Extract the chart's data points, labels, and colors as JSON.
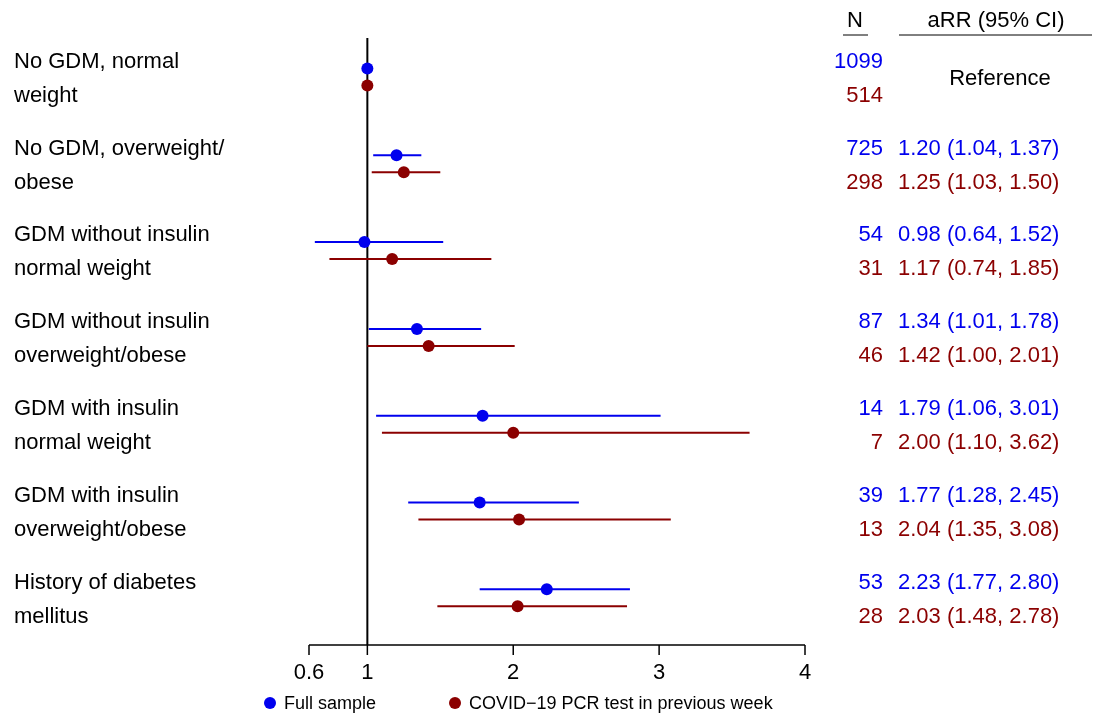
{
  "chart_data": {
    "type": "scatter",
    "orientation": "horizontal",
    "categories": [
      "No GDM, normal\nweight",
      "No GDM, overweight/\nobese",
      "GDM without insulin\nnormal weight",
      "GDM without insulin\noverweight/obese",
      "GDM with insulin\nnormal weight",
      "GDM with insulin\noverweight/obese",
      "History of diabetes\nmellitus"
    ],
    "series": [
      {
        "name": "Full sample",
        "color": "#0000ee",
        "values": [
          1,
          1.2,
          0.98,
          1.34,
          1.79,
          1.77,
          2.23
        ],
        "errors": [
          null,
          [
            1.04,
            1.37
          ],
          [
            0.64,
            1.52
          ],
          [
            1.01,
            1.78
          ],
          [
            1.06,
            3.01
          ],
          [
            1.28,
            2.45
          ],
          [
            1.77,
            2.8
          ]
        ]
      },
      {
        "name": "COVID−19 PCR test in previous week",
        "color": "#8b0000",
        "values": [
          1,
          1.25,
          1.17,
          1.42,
          2.0,
          2.04,
          2.03
        ],
        "errors": [
          null,
          [
            1.03,
            1.5
          ],
          [
            0.74,
            1.85
          ],
          [
            1.0,
            2.01
          ],
          [
            1.1,
            3.62
          ],
          [
            1.35,
            3.08
          ],
          [
            1.48,
            2.78
          ]
        ]
      }
    ],
    "xlim": [
      0.6,
      4
    ],
    "xticks": [
      0.6,
      1,
      2,
      3,
      4
    ],
    "ref_lines": [
      {
        "axis": "x",
        "value": 1,
        "color": "#000000"
      }
    ],
    "annotations": [
      "N",
      "aRR (95% CI)",
      "Reference",
      "1099",
      "514",
      "725",
      "298",
      "54",
      "31",
      "87",
      "46",
      "14",
      "7",
      "39",
      "13",
      "53",
      "28",
      "1.20 (1.04, 1.37)",
      "1.25 (1.03, 1.50)",
      "0.98 (0.64, 1.52)",
      "1.17 (0.74, 1.85)",
      "1.34 (1.01, 1.78)",
      "1.42 (1.00, 2.01)",
      "1.79 (1.06, 3.01)",
      "2.00 (1.10, 3.62)",
      "1.77 (1.28, 2.45)",
      "2.04 (1.35, 3.08)",
      "2.23 (1.77, 2.80)",
      "2.03 (1.48, 2.78)"
    ],
    "marker": "circle",
    "grid": false,
    "legend": "bottom"
  }
}
